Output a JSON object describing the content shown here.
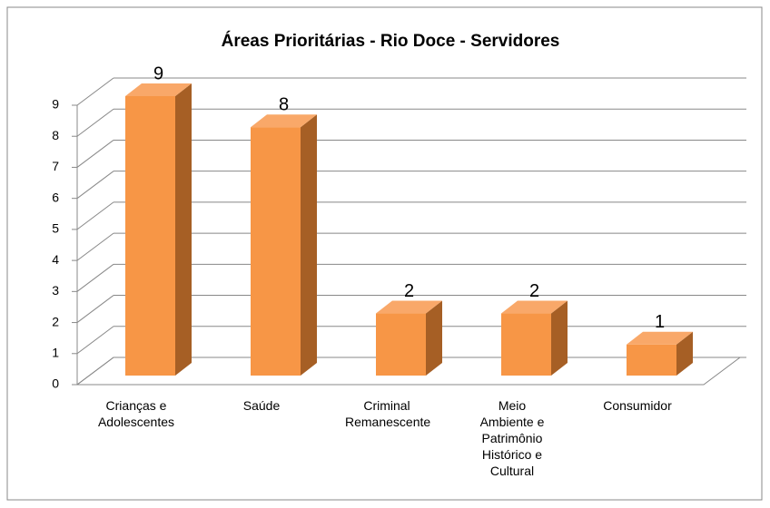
{
  "chart_data": {
    "type": "bar3d",
    "title": "Áreas Prioritárias  - Rio Doce - Servidores",
    "categories": [
      "Crianças e Adolescentes",
      "Saúde",
      "Criminal Remanescente",
      "Meio Ambiente e Patrimônio Histórico e Cultural",
      "Consumidor"
    ],
    "values": [
      9,
      8,
      2,
      2,
      1
    ],
    "color": "#f79646",
    "ylim": [
      0,
      9
    ],
    "yticks": [
      0,
      1,
      2,
      3,
      4,
      5,
      6,
      7,
      8,
      9
    ],
    "grid": true
  }
}
